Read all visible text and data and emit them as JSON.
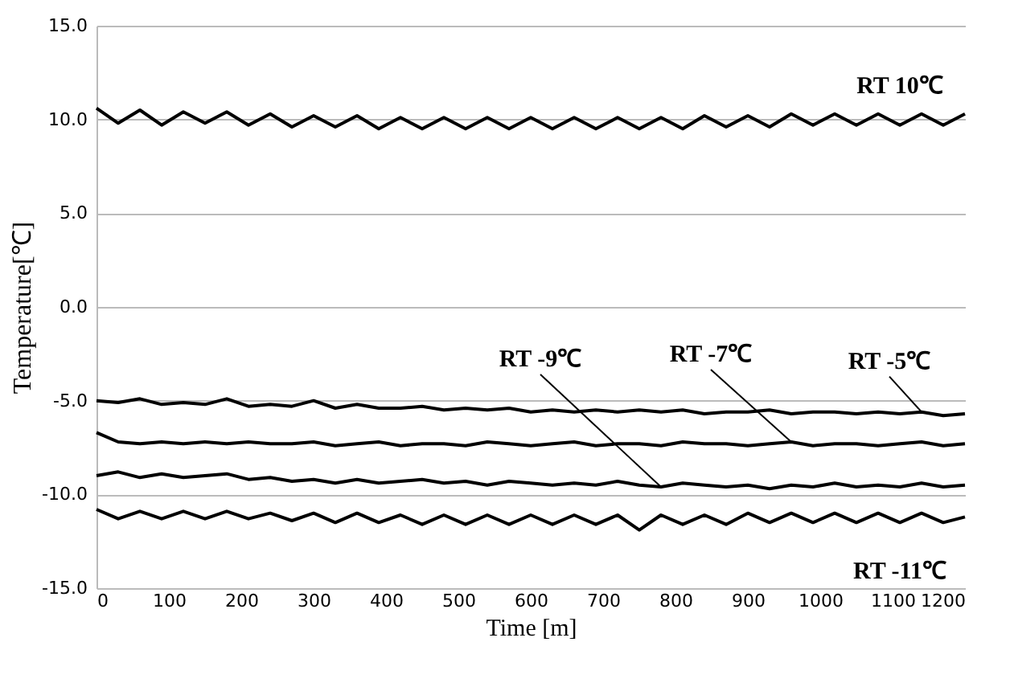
{
  "chart_data": {
    "type": "line",
    "xlabel": "Time [m]",
    "ylabel": "Temperature[℃]",
    "x": [
      0,
      30,
      60,
      90,
      120,
      150,
      180,
      210,
      240,
      270,
      300,
      330,
      360,
      390,
      420,
      450,
      480,
      510,
      540,
      570,
      600,
      630,
      660,
      690,
      720,
      750,
      780,
      810,
      840,
      870,
      900,
      930,
      960,
      990,
      1020,
      1050,
      1080,
      1110,
      1140,
      1170,
      1200
    ],
    "series": [
      {
        "name": "RT 10℃",
        "color": "#000000",
        "values": [
          10.6,
          9.8,
          10.5,
          9.7,
          10.4,
          9.8,
          10.4,
          9.7,
          10.3,
          9.6,
          10.2,
          9.6,
          10.2,
          9.5,
          10.1,
          9.5,
          10.1,
          9.5,
          10.1,
          9.5,
          10.1,
          9.5,
          10.1,
          9.5,
          10.1,
          9.5,
          10.1,
          9.5,
          10.2,
          9.6,
          10.2,
          9.6,
          10.3,
          9.7,
          10.3,
          9.7,
          10.3,
          9.7,
          10.3,
          9.7,
          10.3
        ]
      },
      {
        "name": "RT -5℃",
        "color": "#000000",
        "values": [
          -5.0,
          -5.1,
          -4.9,
          -5.2,
          -5.1,
          -5.2,
          -4.9,
          -5.3,
          -5.2,
          -5.3,
          -5.0,
          -5.4,
          -5.2,
          -5.4,
          -5.4,
          -5.3,
          -5.5,
          -5.4,
          -5.5,
          -5.4,
          -5.6,
          -5.5,
          -5.6,
          -5.5,
          -5.6,
          -5.5,
          -5.6,
          -5.5,
          -5.7,
          -5.6,
          -5.6,
          -5.5,
          -5.7,
          -5.6,
          -5.6,
          -5.7,
          -5.6,
          -5.7,
          -5.6,
          -5.8,
          -5.7
        ]
      },
      {
        "name": "RT -7℃",
        "color": "#000000",
        "values": [
          -6.7,
          -7.2,
          -7.3,
          -7.2,
          -7.3,
          -7.2,
          -7.3,
          -7.2,
          -7.3,
          -7.3,
          -7.2,
          -7.4,
          -7.3,
          -7.2,
          -7.4,
          -7.3,
          -7.3,
          -7.4,
          -7.2,
          -7.3,
          -7.4,
          -7.3,
          -7.2,
          -7.4,
          -7.3,
          -7.3,
          -7.4,
          -7.2,
          -7.3,
          -7.3,
          -7.4,
          -7.3,
          -7.2,
          -7.4,
          -7.3,
          -7.3,
          -7.4,
          -7.3,
          -7.2,
          -7.4,
          -7.3
        ]
      },
      {
        "name": "RT -9℃",
        "color": "#000000",
        "values": [
          -9.0,
          -8.8,
          -9.1,
          -8.9,
          -9.1,
          -9.0,
          -8.9,
          -9.2,
          -9.1,
          -9.3,
          -9.2,
          -9.4,
          -9.2,
          -9.4,
          -9.3,
          -9.2,
          -9.4,
          -9.3,
          -9.5,
          -9.3,
          -9.4,
          -9.5,
          -9.4,
          -9.5,
          -9.3,
          -9.5,
          -9.6,
          -9.4,
          -9.5,
          -9.6,
          -9.5,
          -9.7,
          -9.5,
          -9.6,
          -9.4,
          -9.6,
          -9.5,
          -9.6,
          -9.4,
          -9.6,
          -9.5
        ]
      },
      {
        "name": "RT -11℃",
        "color": "#000000",
        "values": [
          -10.8,
          -11.3,
          -10.9,
          -11.3,
          -10.9,
          -11.3,
          -10.9,
          -11.3,
          -11.0,
          -11.4,
          -11.0,
          -11.5,
          -11.0,
          -11.5,
          -11.1,
          -11.6,
          -11.1,
          -11.6,
          -11.1,
          -11.6,
          -11.1,
          -11.6,
          -11.1,
          -11.6,
          -11.1,
          -11.9,
          -11.1,
          -11.6,
          -11.1,
          -11.6,
          -11.0,
          -11.5,
          -11.0,
          -11.5,
          -11.0,
          -11.5,
          -11.0,
          -11.5,
          -11.0,
          -11.5,
          -11.2
        ]
      }
    ],
    "xlim": [
      0,
      1200
    ],
    "xticks": [
      0,
      100,
      200,
      300,
      400,
      500,
      600,
      700,
      800,
      900,
      1000,
      1100,
      1200
    ],
    "ylim": [
      -15,
      15
    ],
    "yticks": [
      {
        "value": -15,
        "label": "-15.0"
      },
      {
        "value": -10,
        "label": "-10.0"
      },
      {
        "value": -5,
        "label": "-5.0"
      },
      {
        "value": 0,
        "label": "0.0"
      },
      {
        "value": 5,
        "label": "5.0"
      },
      {
        "value": 10,
        "label": "10.0"
      },
      {
        "value": 15,
        "label": "15.0"
      }
    ],
    "grid": "y",
    "legend": false,
    "marker": "none",
    "line_style": "solid"
  }
}
